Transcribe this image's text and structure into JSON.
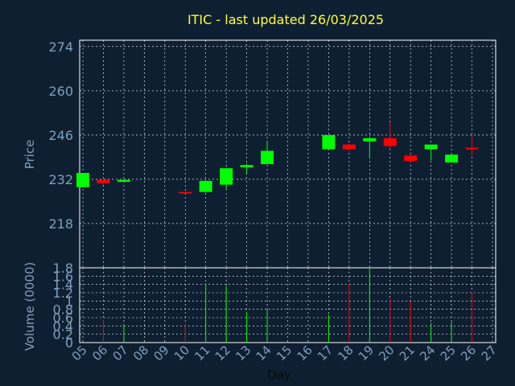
{
  "chart_data": {
    "type": "candlestick",
    "title": "ITIC - last updated 26/03/2025",
    "price_panel": {
      "ylabel": "Price",
      "ylim": [
        204,
        276
      ],
      "yticks": [
        218,
        232,
        246,
        260,
        274
      ]
    },
    "volume_panel": {
      "ylabel": "Volume (0000)",
      "ylim": [
        0,
        1.8
      ],
      "yticks": [
        "0",
        "0.2",
        "0.4",
        "0.6",
        "0.8",
        "1",
        "1.2",
        "1.4",
        "1.6",
        "1.8"
      ]
    },
    "xlabel": "Day",
    "x_ticks": [
      "05",
      "06",
      "07",
      "08",
      "09",
      "10",
      "11",
      "12",
      "13",
      "14",
      "15",
      "16",
      "17",
      "18",
      "19",
      "20",
      "21",
      "24",
      "25",
      "26",
      "27"
    ],
    "grid": true,
    "candles": [
      {
        "day": "05",
        "open": 229.5,
        "close": 234.0,
        "high": 234.0,
        "low": 229.5
      },
      {
        "day": "06",
        "open": 231.8,
        "close": 230.8,
        "high": 232.0,
        "low": 230.3
      },
      {
        "day": "07",
        "open": 231.2,
        "close": 231.8,
        "high": 231.9,
        "low": 231.0
      },
      {
        "day": "10",
        "open": 228.0,
        "close": 227.5,
        "high": 228.2,
        "low": 227.5
      },
      {
        "day": "11",
        "open": 228.0,
        "close": 231.5,
        "high": 231.7,
        "low": 227.8
      },
      {
        "day": "12",
        "open": 230.3,
        "close": 235.5,
        "high": 235.7,
        "low": 229.0
      },
      {
        "day": "13",
        "open": 235.8,
        "close": 236.5,
        "high": 237.0,
        "low": 234.0
      },
      {
        "day": "14",
        "open": 236.8,
        "close": 241.0,
        "high": 244.0,
        "low": 236.8
      },
      {
        "day": "17",
        "open": 241.5,
        "close": 246.0,
        "high": 246.0,
        "low": 241.3
      },
      {
        "day": "18",
        "open": 243.0,
        "close": 241.5,
        "high": 243.2,
        "low": 240.8
      },
      {
        "day": "19",
        "open": 244.0,
        "close": 245.0,
        "high": 245.0,
        "low": 238.5
      },
      {
        "day": "20",
        "open": 245.0,
        "close": 242.5,
        "high": 250.0,
        "low": 241.5
      },
      {
        "day": "21",
        "open": 239.5,
        "close": 237.8,
        "high": 239.8,
        "low": 237.5
      },
      {
        "day": "24",
        "open": 241.5,
        "close": 243.0,
        "high": 243.0,
        "low": 238.0
      },
      {
        "day": "25",
        "open": 237.3,
        "close": 239.8,
        "high": 239.8,
        "low": 237.3
      },
      {
        "day": "26",
        "open": 242.0,
        "close": 241.5,
        "high": 246.0,
        "low": 239.5
      }
    ],
    "volume": [
      {
        "day": "06",
        "value": 0.55,
        "direction": "down"
      },
      {
        "day": "07",
        "value": 0.42,
        "direction": "up"
      },
      {
        "day": "10",
        "value": 0.45,
        "direction": "down"
      },
      {
        "day": "11",
        "value": 1.42,
        "direction": "up"
      },
      {
        "day": "12",
        "value": 1.36,
        "direction": "up"
      },
      {
        "day": "13",
        "value": 0.74,
        "direction": "up"
      },
      {
        "day": "14",
        "value": 0.8,
        "direction": "up"
      },
      {
        "day": "17",
        "value": 0.67,
        "direction": "up"
      },
      {
        "day": "18",
        "value": 1.42,
        "direction": "down"
      },
      {
        "day": "19",
        "value": 1.8,
        "direction": "up"
      },
      {
        "day": "20",
        "value": 1.06,
        "direction": "down"
      },
      {
        "day": "21",
        "value": 1.0,
        "direction": "down"
      },
      {
        "day": "24",
        "value": 0.47,
        "direction": "up"
      },
      {
        "day": "25",
        "value": 0.5,
        "direction": "up"
      },
      {
        "day": "26",
        "value": 1.22,
        "direction": "down"
      }
    ],
    "colors": {
      "background": "#0f1f32",
      "up": "#00ff00",
      "down": "#ff0000",
      "grid": "#ffffff",
      "title": "#ffff33",
      "text": "#7f9fbf"
    }
  }
}
